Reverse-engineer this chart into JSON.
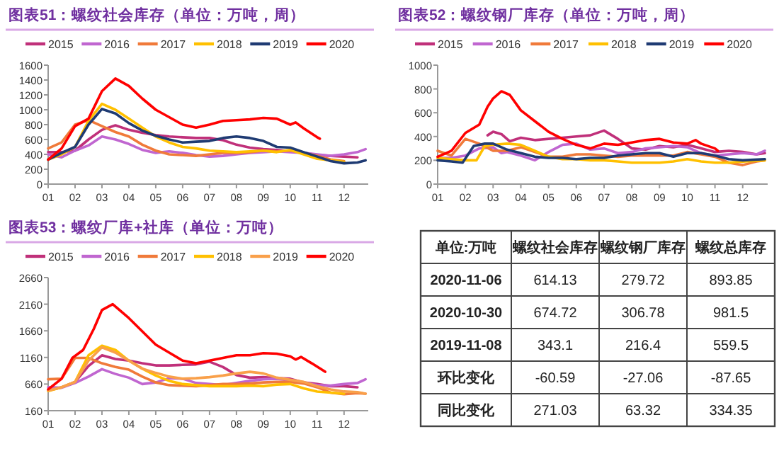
{
  "chart_data": [
    {
      "type": "line",
      "title": "图表51：螺纹社会库存（单位：万吨，周）",
      "legend": "top",
      "xlim": [
        1,
        12.9
      ],
      "xticks": [
        {
          "value": 1,
          "label": "01"
        },
        {
          "value": 2,
          "label": "02"
        },
        {
          "value": 3,
          "label": "03"
        },
        {
          "value": 4,
          "label": "04"
        },
        {
          "value": 5,
          "label": "05"
        },
        {
          "value": 6,
          "label": "06"
        },
        {
          "value": 7,
          "label": "07"
        },
        {
          "value": 8,
          "label": "08"
        },
        {
          "value": 9,
          "label": "09"
        },
        {
          "value": 10,
          "label": "10"
        },
        {
          "value": 11,
          "label": "11"
        },
        {
          "value": 12,
          "label": "12"
        }
      ],
      "ylim": [
        0,
        1600
      ],
      "yticks": [
        0,
        200,
        400,
        600,
        800,
        1000,
        1200,
        1400,
        1600
      ],
      "series": [
        {
          "name": "2015",
          "color": "#c0307a",
          "x": [
            1,
            1.5,
            2,
            2.5,
            3,
            3.5,
            4,
            4.5,
            5,
            5.5,
            6,
            6.5,
            7,
            7.5,
            8,
            8.5,
            9,
            9.5,
            10,
            10.5,
            11,
            11.5,
            12,
            12.5
          ],
          "values": [
            430,
            430,
            450,
            600,
            730,
            790,
            730,
            690,
            660,
            640,
            630,
            620,
            620,
            590,
            530,
            490,
            470,
            460,
            440,
            420,
            390,
            380,
            370,
            360
          ]
        },
        {
          "name": "2016",
          "color": "#c066d0",
          "x": [
            1,
            1.5,
            2,
            2.5,
            3,
            3.5,
            4,
            4.5,
            5,
            5.5,
            6,
            6.5,
            7,
            7.5,
            8,
            8.5,
            9,
            9.5,
            10,
            10.5,
            11,
            11.5,
            12,
            12.5,
            12.8
          ],
          "values": [
            400,
            360,
            450,
            520,
            640,
            600,
            540,
            460,
            420,
            440,
            420,
            390,
            370,
            380,
            400,
            420,
            430,
            440,
            430,
            420,
            400,
            380,
            400,
            430,
            470
          ]
        },
        {
          "name": "2017",
          "color": "#f07a3a",
          "x": [
            1,
            1.5,
            2,
            2.5,
            3,
            3.5,
            4,
            4.5,
            5,
            5.5,
            6,
            6.5,
            7,
            7.5,
            8,
            8.5,
            9,
            9.5,
            10,
            10.5,
            11,
            11.5,
            12
          ],
          "values": [
            480,
            560,
            800,
            860,
            780,
            700,
            640,
            530,
            450,
            400,
            390,
            380,
            400,
            420,
            420,
            430,
            450,
            440,
            450,
            420,
            380,
            330,
            310
          ]
        },
        {
          "name": "2018",
          "color": "#ffc000",
          "x": [
            1,
            1.5,
            2,
            2.5,
            3,
            3.5,
            4,
            4.5,
            5,
            5.5,
            6,
            6.5,
            7,
            7.5,
            8,
            8.5,
            9,
            9.5,
            10,
            10.5,
            11,
            11.5,
            12
          ],
          "values": [
            330,
            400,
            500,
            850,
            1080,
            1000,
            880,
            760,
            640,
            560,
            500,
            480,
            450,
            440,
            430,
            440,
            450,
            430,
            460,
            400,
            340,
            320,
            300
          ]
        },
        {
          "name": "2019",
          "color": "#1f3b73",
          "x": [
            1,
            1.5,
            2,
            2.5,
            3,
            3.5,
            4,
            4.5,
            5,
            5.5,
            6,
            6.5,
            7,
            7.5,
            8,
            8.5,
            9,
            9.5,
            10,
            10.5,
            11,
            11.5,
            12,
            12.5,
            12.8
          ],
          "values": [
            330,
            420,
            500,
            800,
            1010,
            950,
            820,
            720,
            650,
            600,
            560,
            570,
            580,
            620,
            640,
            620,
            580,
            500,
            490,
            430,
            370,
            310,
            280,
            290,
            320
          ]
        },
        {
          "name": "2020",
          "color": "#ff0000",
          "x": [
            1,
            1.5,
            2,
            2.5,
            3,
            3.5,
            4,
            4.5,
            5,
            5.5,
            6,
            6.5,
            7,
            7.5,
            8,
            8.5,
            9,
            9.5,
            10,
            10.2,
            10.5,
            11,
            11.1
          ],
          "values": [
            330,
            480,
            780,
            880,
            1250,
            1420,
            1320,
            1150,
            1000,
            900,
            800,
            760,
            800,
            850,
            860,
            870,
            890,
            880,
            800,
            830,
            750,
            630,
            610
          ]
        }
      ]
    },
    {
      "type": "line",
      "title": "图表52：螺纹钢厂库存（单位：万吨，周）",
      "legend": "top",
      "xlim": [
        1,
        12.9
      ],
      "xticks": [
        {
          "value": 1,
          "label": "01"
        },
        {
          "value": 2,
          "label": "02"
        },
        {
          "value": 3,
          "label": "03"
        },
        {
          "value": 4,
          "label": "04"
        },
        {
          "value": 5,
          "label": "05"
        },
        {
          "value": 6,
          "label": "06"
        },
        {
          "value": 7,
          "label": "07"
        },
        {
          "value": 8,
          "label": "08"
        },
        {
          "value": 9,
          "label": "09"
        },
        {
          "value": 10,
          "label": "10"
        },
        {
          "value": 11,
          "label": "11"
        },
        {
          "value": 12,
          "label": "12"
        }
      ],
      "ylim": [
        0,
        1000
      ],
      "yticks": [
        0,
        200,
        400,
        600,
        800,
        1000
      ],
      "series": [
        {
          "name": "2015",
          "color": "#c0307a",
          "x": [
            2.8,
            3,
            3.3,
            3.6,
            4,
            4.5,
            5,
            5.5,
            6,
            6.5,
            7,
            7.5,
            8,
            8.5,
            9,
            9.5,
            10,
            10.5,
            11,
            11.5,
            12,
            12.5,
            12.8
          ],
          "values": [
            410,
            440,
            420,
            360,
            390,
            370,
            380,
            390,
            400,
            410,
            450,
            380,
            300,
            290,
            320,
            310,
            330,
            300,
            270,
            280,
            270,
            250,
            260
          ]
        },
        {
          "name": "2016",
          "color": "#c066d0",
          "x": [
            1,
            1.5,
            2,
            2.5,
            3,
            3.3,
            3.5,
            4,
            4.5,
            5,
            5.5,
            6,
            6.5,
            7,
            7.5,
            8,
            8.5,
            9,
            9.5,
            10,
            10.5,
            11,
            11.5,
            12,
            12.5,
            12.8
          ],
          "values": [
            220,
            220,
            240,
            300,
            310,
            260,
            270,
            240,
            200,
            270,
            330,
            340,
            290,
            300,
            260,
            270,
            300,
            310,
            320,
            310,
            260,
            240,
            250,
            260,
            250,
            280
          ]
        },
        {
          "name": "2017",
          "color": "#f07a3a",
          "x": [
            1,
            1.5,
            2,
            2.5,
            3,
            3.5,
            4,
            4.5,
            5,
            5.5,
            6,
            6.5,
            7,
            7.5,
            8,
            8.5,
            9,
            9.5,
            10,
            10.5,
            11,
            11.5,
            12,
            12.5,
            12.8
          ],
          "values": [
            280,
            240,
            380,
            340,
            280,
            280,
            310,
            270,
            230,
            230,
            250,
            250,
            240,
            230,
            240,
            240,
            240,
            240,
            270,
            250,
            230,
            180,
            160,
            190,
            200
          ]
        },
        {
          "name": "2018",
          "color": "#ffc000",
          "x": [
            1,
            1.5,
            2,
            2.4,
            2.7,
            3,
            3.5,
            4,
            4.5,
            5,
            5.5,
            6,
            6.5,
            7,
            7.5,
            8,
            8.5,
            9,
            9.5,
            10,
            10.5,
            11,
            11.5,
            12,
            12.8
          ],
          "values": [
            220,
            210,
            200,
            200,
            320,
            330,
            340,
            330,
            280,
            230,
            210,
            210,
            200,
            200,
            190,
            180,
            180,
            180,
            190,
            210,
            190,
            180,
            180,
            190,
            200
          ]
        },
        {
          "name": "2019",
          "color": "#1f3b73",
          "x": [
            1,
            1.5,
            1.9,
            2.3,
            2.7,
            3,
            3.5,
            4,
            4.5,
            5,
            5.5,
            6,
            6.5,
            7,
            7.5,
            8,
            8.5,
            9,
            9.5,
            10,
            10.5,
            11,
            11.5,
            12,
            12.8
          ],
          "values": [
            200,
            190,
            180,
            320,
            340,
            340,
            290,
            260,
            230,
            220,
            220,
            210,
            220,
            220,
            240,
            250,
            260,
            260,
            230,
            260,
            260,
            240,
            210,
            200,
            210
          ]
        },
        {
          "name": "2020",
          "color": "#ff0000",
          "x": [
            1,
            1.3,
            1.5,
            2,
            2.5,
            2.8,
            3,
            3.3,
            3.6,
            4,
            4.5,
            5,
            5.5,
            6,
            6.5,
            7,
            7.5,
            8,
            8.5,
            9,
            9.5,
            10,
            10.3,
            10.5,
            11,
            11.1
          ],
          "values": [
            230,
            260,
            280,
            430,
            500,
            650,
            720,
            780,
            750,
            620,
            530,
            440,
            380,
            330,
            300,
            340,
            330,
            350,
            370,
            380,
            350,
            340,
            370,
            340,
            300,
            280
          ]
        }
      ]
    },
    {
      "type": "line",
      "title": "图表53：螺纹厂库+社库（单位：万吨）",
      "legend": "top",
      "xlim": [
        1,
        12.9
      ],
      "xticks": [
        {
          "value": 1,
          "label": "01"
        },
        {
          "value": 2,
          "label": "02"
        },
        {
          "value": 3,
          "label": "03"
        },
        {
          "value": 4,
          "label": "04"
        },
        {
          "value": 5,
          "label": "05"
        },
        {
          "value": 6,
          "label": "06"
        },
        {
          "value": 7,
          "label": "07"
        },
        {
          "value": 8,
          "label": "08"
        },
        {
          "value": 9,
          "label": "09"
        },
        {
          "value": 10,
          "label": "10"
        },
        {
          "value": 11,
          "label": "11"
        },
        {
          "value": 12,
          "label": "12"
        }
      ],
      "ylim": [
        160,
        2660
      ],
      "yticks": [
        160,
        660,
        1160,
        1660,
        2160,
        2660
      ],
      "series": [
        {
          "name": "2015",
          "color": "#c0307a",
          "x": [
            1,
            1.5,
            2,
            2.5,
            3,
            3.5,
            4,
            4.5,
            5,
            5.5,
            6,
            6.5,
            7,
            7.5,
            8,
            8.5,
            9,
            9.5,
            10,
            10.5,
            11,
            11.5,
            12,
            12.5
          ],
          "values": [
            540,
            600,
            700,
            1000,
            1200,
            1130,
            1100,
            1050,
            1010,
            1010,
            1020,
            1030,
            1080,
            980,
            830,
            780,
            790,
            770,
            760,
            690,
            660,
            620,
            620,
            600
          ]
        },
        {
          "name": "2016",
          "color": "#c066d0",
          "x": [
            1,
            1.5,
            2,
            2.5,
            3,
            3.5,
            4,
            4.5,
            5,
            5.5,
            6,
            6.5,
            7,
            7.5,
            8,
            8.5,
            9,
            9.5,
            10,
            10.5,
            11,
            11.5,
            12,
            12.5,
            12.8
          ],
          "values": [
            600,
            590,
            680,
            800,
            940,
            850,
            780,
            660,
            690,
            770,
            760,
            680,
            660,
            640,
            680,
            720,
            750,
            760,
            730,
            680,
            640,
            630,
            660,
            680,
            750
          ]
        },
        {
          "name": "2017",
          "color": "#f07a3a",
          "x": [
            1,
            1.5,
            2,
            2.5,
            3,
            3.5,
            4,
            4.5,
            5,
            5.5,
            6,
            6.5,
            7,
            7.5,
            8,
            8.5,
            9,
            9.5,
            10,
            10.5,
            11,
            11.5,
            12,
            12.5,
            12.8
          ],
          "values": [
            750,
            760,
            1150,
            1150,
            1050,
            980,
            930,
            800,
            690,
            640,
            630,
            620,
            640,
            660,
            660,
            670,
            690,
            700,
            700,
            670,
            600,
            500,
            470,
            490,
            480
          ]
        },
        {
          "name": "2018",
          "color": "#ffc000",
          "x": [
            1,
            1.5,
            2,
            2.5,
            3,
            3.5,
            4,
            4.5,
            5,
            5.5,
            6,
            6.5,
            7,
            7.5,
            8,
            8.5,
            9,
            9.5,
            10,
            10.5,
            11,
            11.5,
            12
          ],
          "values": [
            530,
            600,
            700,
            1200,
            1380,
            1300,
            1100,
            950,
            820,
            720,
            660,
            640,
            620,
            620,
            620,
            630,
            620,
            650,
            660,
            580,
            520,
            500,
            480
          ]
        },
        {
          "name": "2019",
          "color": "#f9a04a",
          "x": [
            1,
            1.5,
            2,
            2.5,
            3,
            3.5,
            4,
            4.5,
            5,
            5.5,
            6,
            6.5,
            7,
            7.5,
            8,
            8.5,
            9,
            9.5,
            10,
            10.5,
            11,
            11.5,
            12,
            12.5,
            12.8
          ],
          "values": [
            540,
            600,
            700,
            1100,
            1350,
            1250,
            1100,
            950,
            870,
            800,
            760,
            770,
            790,
            820,
            860,
            890,
            860,
            780,
            740,
            700,
            620,
            560,
            520,
            510,
            480
          ]
        },
        {
          "name": "2020",
          "color": "#ff0000",
          "x": [
            1,
            1.5,
            1.9,
            2.3,
            2.7,
            3,
            3.4,
            4,
            4.5,
            5,
            5.5,
            6,
            6.5,
            7,
            7.5,
            8,
            8.5,
            9,
            9.5,
            10,
            10.2,
            10.4,
            10.8,
            11.3
          ],
          "values": [
            560,
            760,
            1150,
            1300,
            1700,
            2050,
            2160,
            1900,
            1650,
            1400,
            1250,
            1100,
            1050,
            1100,
            1150,
            1200,
            1200,
            1240,
            1230,
            1180,
            1120,
            1170,
            1050,
            890
          ]
        }
      ]
    },
    {
      "type": "other",
      "title": "单位:万吨",
      "categories": [
        "螺纹社会库存",
        "螺纹钢厂库存",
        "螺纹总库存"
      ],
      "y_categories": [
        "2020-11-06",
        "2020-10-30",
        "2019-11-08",
        "环比变化",
        "同比变化"
      ],
      "cell_labels": [
        [
          "614.13",
          "279.72",
          "893.85"
        ],
        [
          "674.72",
          "306.78",
          "981.5"
        ],
        [
          "343.1",
          "216.4",
          "559.5"
        ],
        [
          "-60.59",
          "-27.06",
          "-87.65"
        ],
        [
          "271.03",
          "63.32",
          "334.35"
        ]
      ]
    }
  ]
}
